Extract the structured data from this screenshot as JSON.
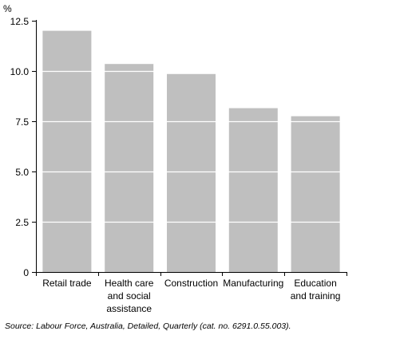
{
  "chart_data": {
    "type": "bar",
    "title": "",
    "xlabel": "",
    "ylabel": "%",
    "categories": [
      [
        "Retail trade"
      ],
      [
        "Health care",
        "and social",
        "assistance"
      ],
      [
        "Construction"
      ],
      [
        "Manufacturing"
      ],
      [
        "Education",
        "and training"
      ]
    ],
    "values": [
      12.0,
      10.35,
      9.85,
      8.15,
      7.75
    ],
    "ylim": [
      0,
      12.5
    ],
    "yticks": [
      "0",
      "2.5",
      "5.0",
      "7.5",
      "10.0",
      "12.5"
    ],
    "ytick_values": [
      0,
      2.5,
      5.0,
      7.5,
      10.0,
      12.5
    ],
    "grid": true,
    "bar_color": "#bfbfbf",
    "grid_color": "#ffffff"
  },
  "source": "Source: Labour Force, Australia, Detailed, Quarterly (cat. no. 6291.0.55.003)."
}
